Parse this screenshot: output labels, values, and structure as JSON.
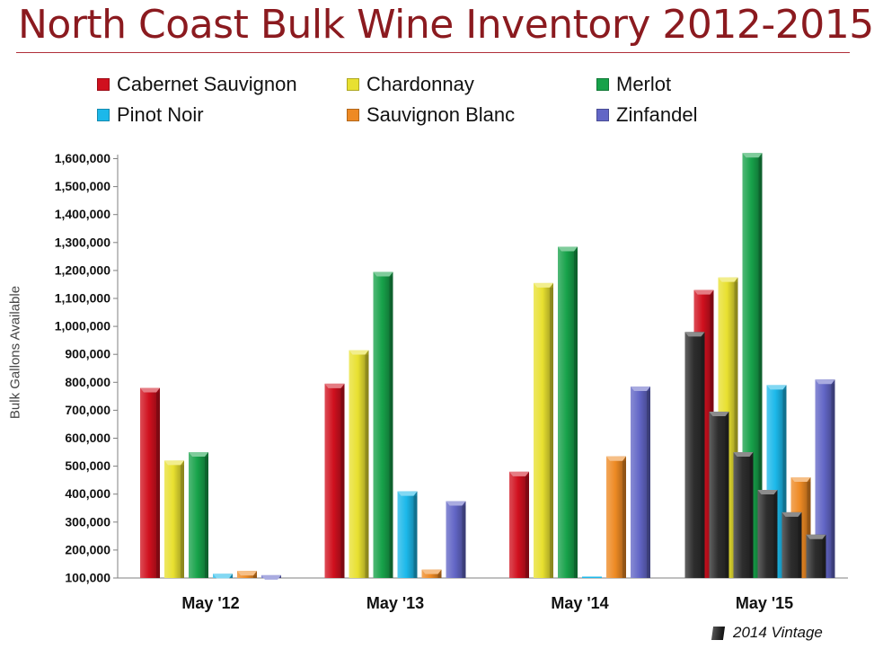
{
  "chart_data": {
    "type": "bar",
    "title": "North Coast Bulk Wine Inventory 2012-2015",
    "ylabel": "Bulk Gallons Available",
    "xlabel": "",
    "ylim": [
      100000,
      1650000
    ],
    "yticks": [
      "100,000",
      "200,000",
      "300,000",
      "400,000",
      "500,000",
      "600,000",
      "700,000",
      "800,000",
      "900,000",
      "1,000,000",
      "1,100,000",
      "1,200,000",
      "1,300,000",
      "1,400,000",
      "1,500,000",
      "1,600,000"
    ],
    "ytick_values": [
      100000,
      200000,
      300000,
      400000,
      500000,
      600000,
      700000,
      800000,
      900000,
      1000000,
      1100000,
      1200000,
      1300000,
      1400000,
      1500000,
      1600000
    ],
    "categories": [
      "May '12",
      "May '13",
      "May '14",
      "May '15"
    ],
    "legend_position": "top",
    "grid": false,
    "series": [
      {
        "name": "Cabernet Sauvignon",
        "color": "#d0101e",
        "values": [
          780000,
          795000,
          480000,
          1130000
        ]
      },
      {
        "name": "Chardonnay",
        "color": "#e8e030",
        "values": [
          520000,
          915000,
          1155000,
          1175000
        ]
      },
      {
        "name": "Merlot",
        "color": "#17a24a",
        "values": [
          550000,
          1195000,
          1285000,
          1620000
        ]
      },
      {
        "name": "Pinot Noir",
        "color": "#1cb8ea",
        "values": [
          115000,
          410000,
          100000,
          790000
        ]
      },
      {
        "name": "Sauvignon Blanc",
        "color": "#ee8a24",
        "values": [
          125000,
          130000,
          535000,
          460000
        ]
      },
      {
        "name": "Zinfandel",
        "color": "#6266c6",
        "values": [
          110000,
          375000,
          785000,
          810000
        ]
      }
    ],
    "overlay": {
      "name": "2014 Vintage",
      "color": "#2e2e2e",
      "category": "May '15",
      "values": [
        980000,
        695000,
        550000,
        415000,
        335000,
        255000
      ]
    }
  }
}
